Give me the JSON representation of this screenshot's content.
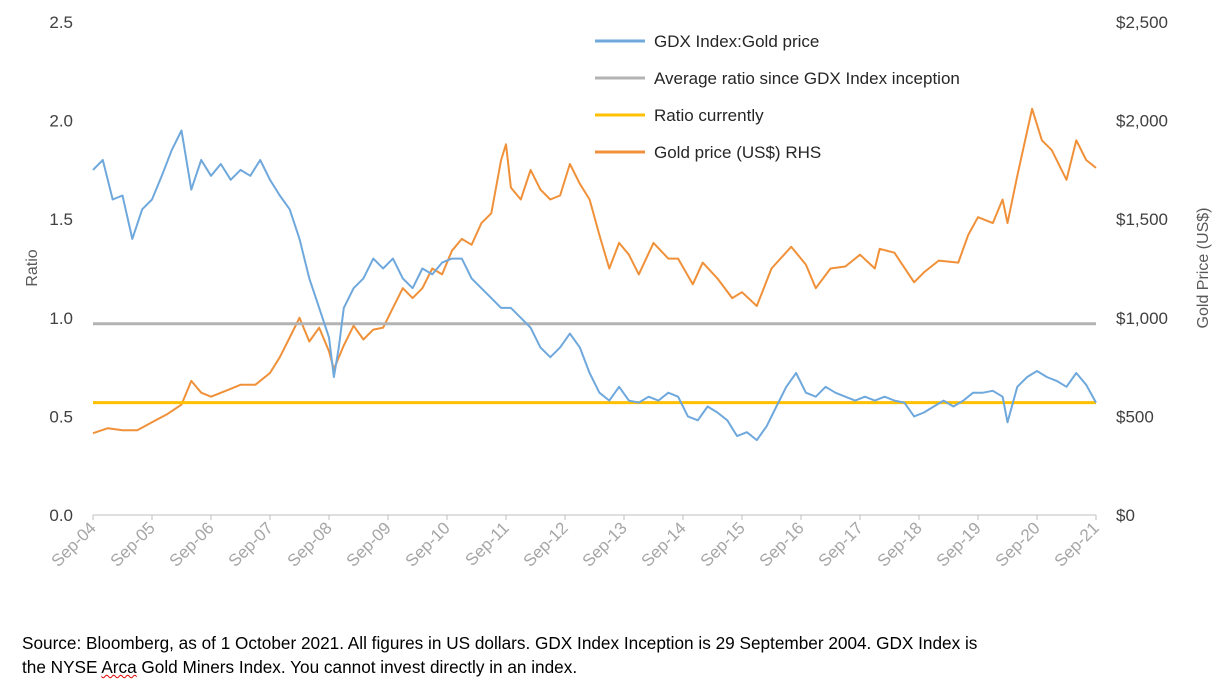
{
  "colors": {
    "ratio": "#6fa8dc",
    "average": "#b3b3b3",
    "current": "#ffc000",
    "gold": "#f0913a",
    "axis_text": "#404040",
    "spell_underline": "#e00000"
  },
  "chart_data": {
    "type": "line",
    "title": "",
    "xlabel": "",
    "ylabel": "Ratio",
    "y2label": "Gold Price (US$)",
    "ylim": [
      0,
      2.5
    ],
    "y2lim": [
      0,
      2500
    ],
    "xlim": [
      "2004-09",
      "2021-09"
    ],
    "yticks": [
      "0.0",
      "0.5",
      "1.0",
      "1.5",
      "2.0",
      "2.5"
    ],
    "y2ticks": [
      "$0",
      "$500",
      "$1,000",
      "$1,500",
      "$2,000",
      "$2,500"
    ],
    "xticks": [
      "Sep-04",
      "Sep-05",
      "Sep-06",
      "Sep-07",
      "Sep-08",
      "Sep-09",
      "Sep-10",
      "Sep-11",
      "Sep-12",
      "Sep-13",
      "Sep-14",
      "Sep-15",
      "Sep-16",
      "Sep-17",
      "Sep-18",
      "Sep-19",
      "Sep-20",
      "Sep-21"
    ],
    "grid": false,
    "legend_position": "top-center",
    "series": [
      {
        "name": "GDX Index:Gold price",
        "axis": "left",
        "color": "#6fa8dc",
        "points": [
          [
            "2004-09",
            1.75
          ],
          [
            "2004-11",
            1.8
          ],
          [
            "2005-01",
            1.6
          ],
          [
            "2005-03",
            1.62
          ],
          [
            "2005-05",
            1.4
          ],
          [
            "2005-07",
            1.55
          ],
          [
            "2005-09",
            1.6
          ],
          [
            "2005-11",
            1.72
          ],
          [
            "2006-01",
            1.85
          ],
          [
            "2006-03",
            1.95
          ],
          [
            "2006-05",
            1.65
          ],
          [
            "2006-07",
            1.8
          ],
          [
            "2006-09",
            1.72
          ],
          [
            "2006-11",
            1.78
          ],
          [
            "2007-01",
            1.7
          ],
          [
            "2007-03",
            1.75
          ],
          [
            "2007-05",
            1.72
          ],
          [
            "2007-07",
            1.8
          ],
          [
            "2007-09",
            1.7
          ],
          [
            "2007-11",
            1.62
          ],
          [
            "2008-01",
            1.55
          ],
          [
            "2008-03",
            1.4
          ],
          [
            "2008-05",
            1.2
          ],
          [
            "2008-07",
            1.05
          ],
          [
            "2008-09",
            0.9
          ],
          [
            "2008-10",
            0.7
          ],
          [
            "2008-11",
            0.85
          ],
          [
            "2008-12",
            1.05
          ],
          [
            "2009-02",
            1.15
          ],
          [
            "2009-04",
            1.2
          ],
          [
            "2009-06",
            1.3
          ],
          [
            "2009-08",
            1.25
          ],
          [
            "2009-10",
            1.3
          ],
          [
            "2009-12",
            1.2
          ],
          [
            "2010-02",
            1.15
          ],
          [
            "2010-04",
            1.25
          ],
          [
            "2010-06",
            1.22
          ],
          [
            "2010-08",
            1.28
          ],
          [
            "2010-10",
            1.3
          ],
          [
            "2010-12",
            1.3
          ],
          [
            "2011-02",
            1.2
          ],
          [
            "2011-04",
            1.15
          ],
          [
            "2011-06",
            1.1
          ],
          [
            "2011-08",
            1.05
          ],
          [
            "2011-10",
            1.05
          ],
          [
            "2011-12",
            1.0
          ],
          [
            "2012-02",
            0.95
          ],
          [
            "2012-04",
            0.85
          ],
          [
            "2012-06",
            0.8
          ],
          [
            "2012-08",
            0.85
          ],
          [
            "2012-10",
            0.92
          ],
          [
            "2012-12",
            0.85
          ],
          [
            "2013-02",
            0.72
          ],
          [
            "2013-04",
            0.62
          ],
          [
            "2013-06",
            0.58
          ],
          [
            "2013-08",
            0.65
          ],
          [
            "2013-10",
            0.58
          ],
          [
            "2013-12",
            0.57
          ],
          [
            "2014-02",
            0.6
          ],
          [
            "2014-04",
            0.58
          ],
          [
            "2014-06",
            0.62
          ],
          [
            "2014-08",
            0.6
          ],
          [
            "2014-10",
            0.5
          ],
          [
            "2014-12",
            0.48
          ],
          [
            "2015-02",
            0.55
          ],
          [
            "2015-04",
            0.52
          ],
          [
            "2015-06",
            0.48
          ],
          [
            "2015-08",
            0.4
          ],
          [
            "2015-10",
            0.42
          ],
          [
            "2015-12",
            0.38
          ],
          [
            "2016-02",
            0.45
          ],
          [
            "2016-04",
            0.55
          ],
          [
            "2016-06",
            0.65
          ],
          [
            "2016-08",
            0.72
          ],
          [
            "2016-10",
            0.62
          ],
          [
            "2016-12",
            0.6
          ],
          [
            "2017-02",
            0.65
          ],
          [
            "2017-04",
            0.62
          ],
          [
            "2017-06",
            0.6
          ],
          [
            "2017-08",
            0.58
          ],
          [
            "2017-10",
            0.6
          ],
          [
            "2017-12",
            0.58
          ],
          [
            "2018-02",
            0.6
          ],
          [
            "2018-04",
            0.58
          ],
          [
            "2018-06",
            0.57
          ],
          [
            "2018-08",
            0.5
          ],
          [
            "2018-10",
            0.52
          ],
          [
            "2018-12",
            0.55
          ],
          [
            "2019-02",
            0.58
          ],
          [
            "2019-04",
            0.55
          ],
          [
            "2019-06",
            0.58
          ],
          [
            "2019-08",
            0.62
          ],
          [
            "2019-10",
            0.62
          ],
          [
            "2019-12",
            0.63
          ],
          [
            "2020-02",
            0.6
          ],
          [
            "2020-03",
            0.47
          ],
          [
            "2020-05",
            0.65
          ],
          [
            "2020-07",
            0.7
          ],
          [
            "2020-09",
            0.73
          ],
          [
            "2020-11",
            0.7
          ],
          [
            "2021-01",
            0.68
          ],
          [
            "2021-03",
            0.65
          ],
          [
            "2021-05",
            0.72
          ],
          [
            "2021-07",
            0.66
          ],
          [
            "2021-09",
            0.57
          ]
        ]
      },
      {
        "name": "Average ratio since GDX Index inception",
        "axis": "left",
        "color": "#b3b3b3",
        "points": [
          [
            "2004-09",
            0.97
          ],
          [
            "2021-09",
            0.97
          ]
        ]
      },
      {
        "name": "Ratio currently",
        "axis": "left",
        "color": "#ffc000",
        "points": [
          [
            "2004-09",
            0.57
          ],
          [
            "2021-09",
            0.57
          ]
        ]
      },
      {
        "name": "Gold price (US$) RHS",
        "axis": "right",
        "color": "#f0913a",
        "points": [
          [
            "2004-09",
            415
          ],
          [
            "2004-12",
            440
          ],
          [
            "2005-03",
            430
          ],
          [
            "2005-06",
            430
          ],
          [
            "2005-09",
            470
          ],
          [
            "2005-12",
            510
          ],
          [
            "2006-03",
            560
          ],
          [
            "2006-05",
            680
          ],
          [
            "2006-07",
            620
          ],
          [
            "2006-09",
            600
          ],
          [
            "2006-12",
            630
          ],
          [
            "2007-03",
            660
          ],
          [
            "2007-06",
            660
          ],
          [
            "2007-09",
            720
          ],
          [
            "2007-11",
            800
          ],
          [
            "2008-01",
            900
          ],
          [
            "2008-03",
            1000
          ],
          [
            "2008-05",
            880
          ],
          [
            "2008-07",
            950
          ],
          [
            "2008-09",
            830
          ],
          [
            "2008-10",
            740
          ],
          [
            "2008-12",
            860
          ],
          [
            "2009-02",
            960
          ],
          [
            "2009-04",
            890
          ],
          [
            "2009-06",
            940
          ],
          [
            "2009-08",
            950
          ],
          [
            "2009-10",
            1050
          ],
          [
            "2009-12",
            1150
          ],
          [
            "2010-02",
            1100
          ],
          [
            "2010-04",
            1150
          ],
          [
            "2010-06",
            1250
          ],
          [
            "2010-08",
            1220
          ],
          [
            "2010-10",
            1340
          ],
          [
            "2010-12",
            1400
          ],
          [
            "2011-02",
            1370
          ],
          [
            "2011-04",
            1480
          ],
          [
            "2011-06",
            1530
          ],
          [
            "2011-08",
            1800
          ],
          [
            "2011-09",
            1880
          ],
          [
            "2011-10",
            1660
          ],
          [
            "2011-12",
            1600
          ],
          [
            "2012-02",
            1750
          ],
          [
            "2012-04",
            1650
          ],
          [
            "2012-06",
            1600
          ],
          [
            "2012-08",
            1620
          ],
          [
            "2012-10",
            1780
          ],
          [
            "2012-12",
            1680
          ],
          [
            "2013-02",
            1600
          ],
          [
            "2013-04",
            1420
          ],
          [
            "2013-06",
            1250
          ],
          [
            "2013-08",
            1380
          ],
          [
            "2013-10",
            1320
          ],
          [
            "2013-12",
            1220
          ],
          [
            "2014-03",
            1380
          ],
          [
            "2014-06",
            1300
          ],
          [
            "2014-08",
            1300
          ],
          [
            "2014-11",
            1170
          ],
          [
            "2015-01",
            1280
          ],
          [
            "2015-04",
            1200
          ],
          [
            "2015-07",
            1100
          ],
          [
            "2015-09",
            1130
          ],
          [
            "2015-12",
            1060
          ],
          [
            "2016-03",
            1250
          ],
          [
            "2016-07",
            1360
          ],
          [
            "2016-10",
            1270
          ],
          [
            "2016-12",
            1150
          ],
          [
            "2017-03",
            1250
          ],
          [
            "2017-06",
            1260
          ],
          [
            "2017-09",
            1320
          ],
          [
            "2017-12",
            1250
          ],
          [
            "2018-01",
            1350
          ],
          [
            "2018-04",
            1330
          ],
          [
            "2018-08",
            1180
          ],
          [
            "2018-10",
            1230
          ],
          [
            "2019-01",
            1290
          ],
          [
            "2019-05",
            1280
          ],
          [
            "2019-07",
            1420
          ],
          [
            "2019-09",
            1510
          ],
          [
            "2019-12",
            1480
          ],
          [
            "2020-02",
            1600
          ],
          [
            "2020-03",
            1480
          ],
          [
            "2020-05",
            1720
          ],
          [
            "2020-08",
            2060
          ],
          [
            "2020-10",
            1900
          ],
          [
            "2020-12",
            1850
          ],
          [
            "2021-03",
            1700
          ],
          [
            "2021-05",
            1900
          ],
          [
            "2021-07",
            1800
          ],
          [
            "2021-09",
            1760
          ]
        ]
      }
    ]
  },
  "source_note": {
    "part1": "Source: Bloomberg, as of 1 October 2021. All figures in US dollars. GDX Index Inception is 29 September 2004. GDX Index is",
    "part2_prefix": "the NYSE ",
    "part2_flagged": "Arca",
    "part2_suffix": " Gold Miners Index. You cannot invest directly in an index."
  }
}
